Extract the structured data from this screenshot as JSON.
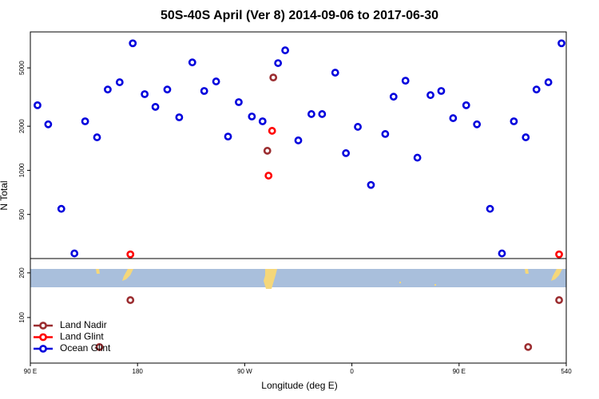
{
  "chart_data": [
    {
      "type": "scatter",
      "title": "50S-40S April (Ver 8)   2014-09-06 to 2017-06-30",
      "ylabel": "N Total",
      "log_y": true,
      "xlim": [
        90,
        540
      ],
      "ylim": [
        250,
        8800
      ],
      "yticks": [
        500,
        1000,
        2000,
        5000
      ],
      "series": [
        {
          "color": "#9b2d30",
          "x": [
            294,
            289
          ],
          "values": [
            4300,
            1360
          ]
        },
        {
          "color": "#ff0000",
          "x": [
            293,
            290,
            174,
            534
          ],
          "values": [
            1860,
            920,
            267,
            267
          ]
        },
        {
          "color": "#0000dd",
          "x": [
            96,
            105,
            116,
            127,
            136,
            146,
            155,
            165,
            176,
            186,
            195,
            205,
            215,
            226,
            236,
            246,
            256,
            265,
            276,
            285,
            298,
            304,
            315,
            326,
            335,
            346,
            355,
            365,
            376,
            388,
            395,
            405,
            415,
            426,
            435,
            445,
            456,
            465,
            476,
            486,
            496,
            506,
            515,
            525,
            536
          ],
          "values": [
            2780,
            2060,
            546,
            271,
            2160,
            1680,
            3560,
            3990,
            7360,
            3310,
            2710,
            3560,
            2300,
            5450,
            3480,
            4040,
            1700,
            2920,
            2330,
            2160,
            5390,
            6590,
            1600,
            2420,
            2420,
            4640,
            1310,
            1980,
            795,
            1770,
            3180,
            4090,
            1220,
            3260,
            3480,
            2270,
            2780,
            2060,
            546,
            271,
            2160,
            1680,
            3560,
            3990,
            7360
          ]
        }
      ]
    },
    {
      "type": "scatter",
      "xlabel": "Longitude (deg E)",
      "legend": "lower left",
      "xlim": [
        90,
        540
      ],
      "xticks": [
        {
          "value": 90,
          "label": "90 E"
        },
        180,
        {
          "value": 270,
          "label": "90 W"
        },
        {
          "value": 360,
          "label": "0"
        },
        {
          "value": 450,
          "label": "90 E"
        },
        540
      ],
      "ylim": [
        -2,
        232
      ],
      "yticks": [
        100,
        200
      ],
      "series": [
        {
          "name": "Land Nadir",
          "color": "#9b2d30",
          "x": [
            174,
            534,
            148,
            508
          ],
          "values": [
            139,
            139,
            34,
            34
          ]
        },
        {
          "name": "Land Glint",
          "color": "#ff0000",
          "x": [],
          "values": []
        },
        {
          "name": "Ocean Glint",
          "color": "#0000dd",
          "x": [],
          "values": []
        }
      ]
    }
  ]
}
